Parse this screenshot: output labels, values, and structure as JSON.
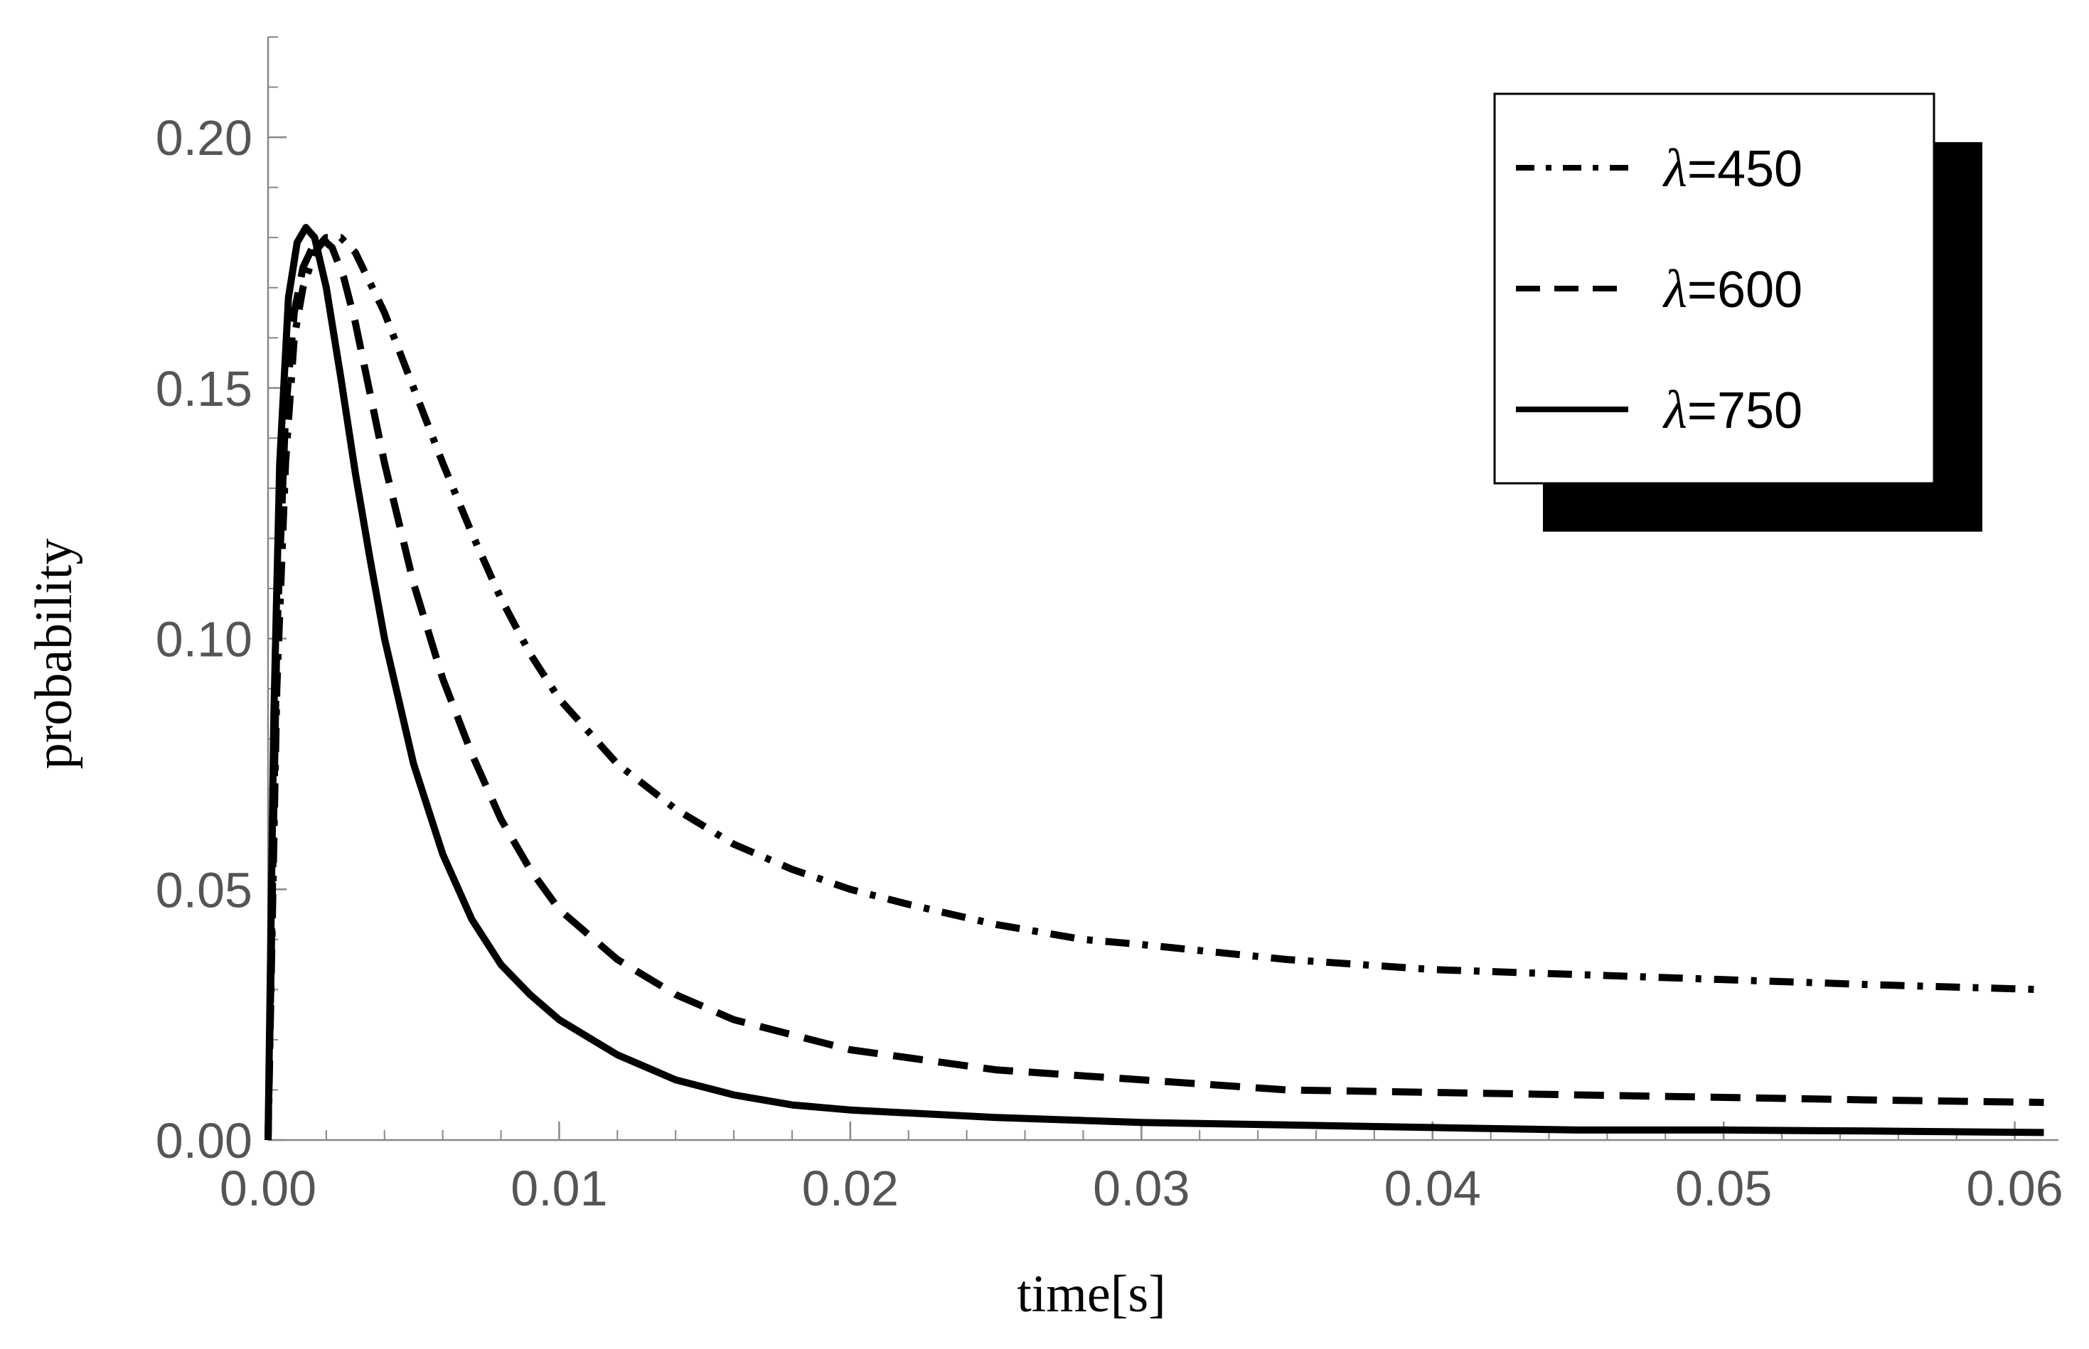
{
  "chart_data": {
    "type": "line",
    "title": "",
    "xlabel": "time[s]",
    "ylabel": "probability",
    "xlim": [
      0,
      0.0615
    ],
    "ylim": [
      0,
      0.22
    ],
    "x_ticks": [
      0.0,
      0.01,
      0.02,
      0.03,
      0.04,
      0.05,
      0.06
    ],
    "x_tick_labels": [
      "0.00",
      "0.01",
      "0.02",
      "0.03",
      "0.04",
      "0.05",
      "0.06"
    ],
    "y_ticks": [
      0.0,
      0.05,
      0.1,
      0.15,
      0.2
    ],
    "y_tick_labels": [
      "0.00",
      "0.05",
      "0.10",
      "0.15",
      "0.20"
    ],
    "x_minor_step": 0.002,
    "y_minor_step": 0.01,
    "grid": false,
    "legend_position": "top-right",
    "series": [
      {
        "name": "λ=450",
        "lambda_symbol": "λ",
        "lambda_value": "=450",
        "style": "dashdot",
        "x": [
          0,
          0.0003,
          0.0006,
          0.0009,
          0.0012,
          0.0016,
          0.002,
          0.0025,
          0.003,
          0.004,
          0.005,
          0.006,
          0.007,
          0.008,
          0.009,
          0.01,
          0.012,
          0.014,
          0.016,
          0.018,
          0.02,
          0.022,
          0.025,
          0.028,
          0.03,
          0.035,
          0.04,
          0.045,
          0.05,
          0.055,
          0.061
        ],
        "y": [
          0,
          0.09,
          0.135,
          0.16,
          0.17,
          0.177,
          0.18,
          0.18,
          0.177,
          0.165,
          0.15,
          0.135,
          0.121,
          0.108,
          0.097,
          0.088,
          0.075,
          0.066,
          0.059,
          0.054,
          0.05,
          0.047,
          0.043,
          0.04,
          0.039,
          0.036,
          0.034,
          0.033,
          0.032,
          0.031,
          0.03
        ]
      },
      {
        "name": "λ=600",
        "lambda_symbol": "λ",
        "lambda_value": "=600",
        "style": "dashed",
        "x": [
          0,
          0.0003,
          0.0006,
          0.0009,
          0.0012,
          0.0016,
          0.0018,
          0.0022,
          0.0026,
          0.003,
          0.0035,
          0.004,
          0.005,
          0.006,
          0.007,
          0.008,
          0.009,
          0.01,
          0.012,
          0.014,
          0.016,
          0.018,
          0.02,
          0.025,
          0.03,
          0.035,
          0.04,
          0.045,
          0.05,
          0.055,
          0.061
        ],
        "y": [
          0,
          0.1,
          0.145,
          0.165,
          0.174,
          0.179,
          0.18,
          0.178,
          0.172,
          0.163,
          0.149,
          0.135,
          0.111,
          0.092,
          0.077,
          0.064,
          0.054,
          0.046,
          0.036,
          0.029,
          0.024,
          0.021,
          0.018,
          0.014,
          0.012,
          0.01,
          0.0095,
          0.009,
          0.0085,
          0.008,
          0.0075
        ]
      },
      {
        "name": "λ=750",
        "lambda_symbol": "λ",
        "lambda_value": "=750",
        "style": "solid",
        "x": [
          0,
          0.0002,
          0.0004,
          0.0007,
          0.001,
          0.0013,
          0.0016,
          0.002,
          0.0025,
          0.003,
          0.0035,
          0.004,
          0.005,
          0.006,
          0.007,
          0.008,
          0.009,
          0.01,
          0.012,
          0.014,
          0.016,
          0.018,
          0.02,
          0.025,
          0.03,
          0.035,
          0.04,
          0.045,
          0.05,
          0.055,
          0.061
        ],
        "y": [
          0,
          0.085,
          0.135,
          0.168,
          0.179,
          0.182,
          0.18,
          0.17,
          0.152,
          0.133,
          0.116,
          0.1,
          0.075,
          0.057,
          0.044,
          0.035,
          0.029,
          0.024,
          0.017,
          0.012,
          0.009,
          0.007,
          0.006,
          0.0045,
          0.0035,
          0.003,
          0.0025,
          0.002,
          0.002,
          0.0018,
          0.0015
        ]
      }
    ]
  }
}
